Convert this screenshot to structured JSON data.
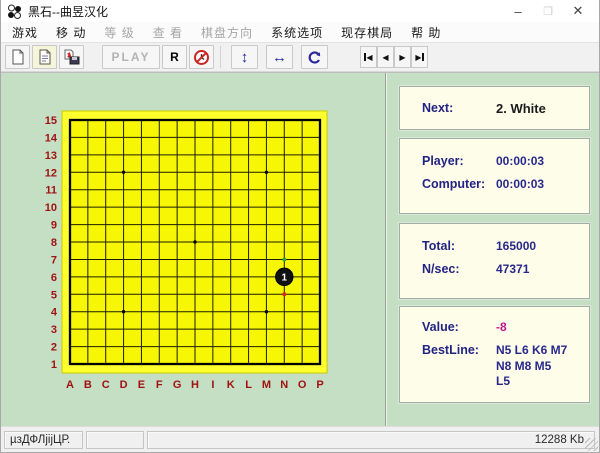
{
  "window": {
    "title": "黑石--曲昱汉化",
    "minimize_glyph": "–",
    "maximize_glyph": "❒",
    "close_glyph": "✕"
  },
  "menu": {
    "items": [
      {
        "label": "游戏",
        "enabled": true
      },
      {
        "label": "移 动",
        "enabled": true
      },
      {
        "label": "等 级",
        "enabled": false
      },
      {
        "label": "查 看",
        "enabled": false
      },
      {
        "label": "棋盘方向",
        "enabled": false
      },
      {
        "label": "系统选项",
        "enabled": true
      },
      {
        "label": "现存棋局",
        "enabled": true
      },
      {
        "label": "帮 助",
        "enabled": true
      }
    ]
  },
  "toolbar": {
    "play_label": "PLAY",
    "redo_label": "R"
  },
  "board": {
    "row_labels": [
      "15",
      "14",
      "13",
      "12",
      "11",
      "10",
      "9",
      "8",
      "7",
      "6",
      "5",
      "4",
      "3",
      "2",
      "1"
    ],
    "col_labels": [
      "A",
      "B",
      "C",
      "D",
      "E",
      "F",
      "G",
      "H",
      "I",
      "K",
      "L",
      "M",
      "N",
      "O",
      "P"
    ],
    "star_points": [
      "D12",
      "M12",
      "H8",
      "D4",
      "M4"
    ],
    "stones": [
      {
        "pos": "N6",
        "color": "black",
        "number": "1"
      }
    ],
    "marks": [
      {
        "pos": "N7",
        "color": "#3aa13a"
      },
      {
        "pos": "N5",
        "color": "#d42b1e"
      }
    ]
  },
  "panels": {
    "next": {
      "label": "Next:",
      "value": "2. White"
    },
    "times": {
      "player_label": "Player:",
      "player_value": "00:00:03",
      "computer_label": "Computer:",
      "computer_value": "00:00:03"
    },
    "search": {
      "total_label": "Total:",
      "total_value": "165000",
      "nsec_label": "N/sec:",
      "nsec_value": "47371"
    },
    "eval": {
      "value_label": "Value:",
      "value_value": "-8",
      "bestline_label": "BestLine:",
      "bestline_value": "N5 L6 K6 M7\nN8 M8 M5\nL5"
    }
  },
  "statusbar": {
    "left_text": "µзДФЛjijЦР.",
    "memory": "12288 Kb"
  },
  "colors": {
    "board_margin": "#ffff2e",
    "board_inner": "#f7f705",
    "grid_line": "#1c1c00",
    "label_red": "#a01212",
    "panel_green": "#c4dfc4",
    "navy": "#232384"
  }
}
